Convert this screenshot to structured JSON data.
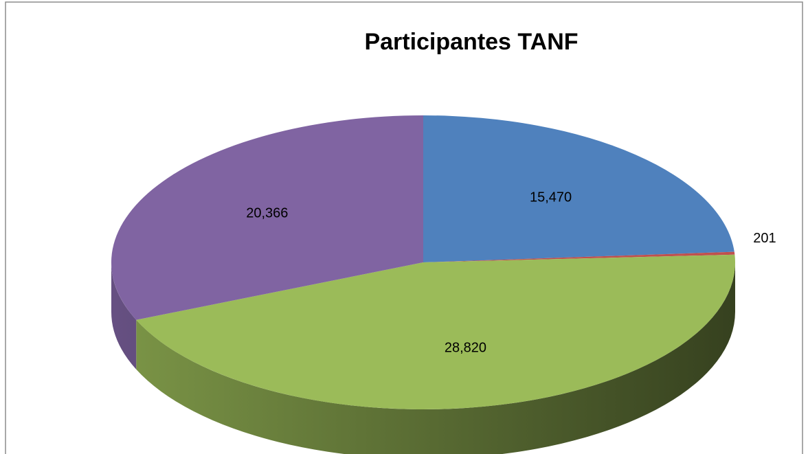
{
  "chart_data": {
    "type": "pie",
    "title": "Participantes TANF",
    "values": [
      15470,
      201,
      28820,
      20366
    ],
    "value_labels": [
      "15,470",
      "201",
      "28,820",
      "20,366"
    ],
    "colors": [
      "#4f81bd",
      "#c0504d",
      "#9bbb59",
      "#8064a2"
    ]
  }
}
